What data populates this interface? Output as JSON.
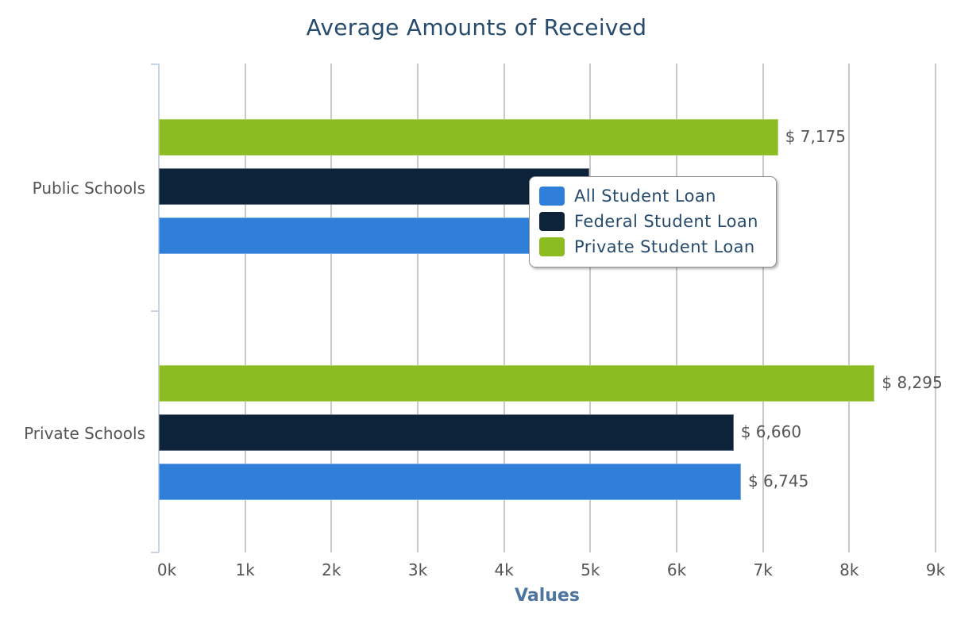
{
  "chart_data": {
    "type": "bar",
    "orientation": "horizontal",
    "title": "Average Amounts of Received",
    "xlabel": "Values",
    "ylabel": "",
    "categories": [
      "Public Schools",
      "Private Schools"
    ],
    "series": [
      {
        "name": "All Student Loan",
        "color": "#2f7ed8",
        "values": [
          5300,
          6745
        ],
        "labels": [
          "",
          "$ 6,745"
        ]
      },
      {
        "name": "Federal Student Loan",
        "color": "#0d233a",
        "values": [
          4990,
          6660
        ],
        "labels": [
          "",
          "$ 6,660"
        ]
      },
      {
        "name": "Private Student Loan",
        "color": "#8bbc21",
        "values": [
          7175,
          8295
        ],
        "labels": [
          "$ 7,175",
          "$ 8,295"
        ]
      }
    ],
    "xlim": [
      0,
      9000
    ],
    "x_ticks": [
      "0k",
      "1k",
      "2k",
      "3k",
      "4k",
      "5k",
      "6k",
      "7k",
      "8k",
      "9k"
    ],
    "grid": true,
    "legend_position": "inside-overlay"
  },
  "legend": {
    "items": [
      {
        "label": "All Student Loan",
        "color": "#2f7ed8"
      },
      {
        "label": "Federal Student Loan",
        "color": "#0d233a"
      },
      {
        "label": "Private Student Loan",
        "color": "#8bbc21"
      }
    ]
  }
}
